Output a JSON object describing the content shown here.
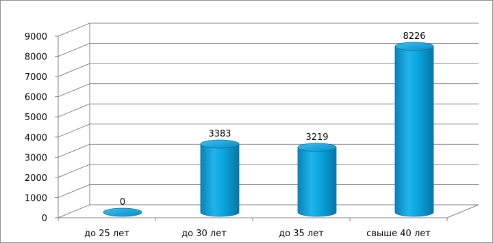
{
  "chart_data": {
    "type": "bar",
    "title": "",
    "xlabel": "",
    "ylabel": "",
    "categories": [
      "до 25 лет",
      "до 30 лет",
      "до 35 лет",
      "свыше 40 лет"
    ],
    "values": [
      0,
      3383,
      3219,
      8226
    ],
    "data_labels": [
      "0",
      "3383",
      "3219",
      "8226"
    ],
    "yticks": [
      "0",
      "1000",
      "2000",
      "3000",
      "4000",
      "5000",
      "6000",
      "7000",
      "8000",
      "9000"
    ],
    "ylim": [
      0,
      9000
    ],
    "grid": true,
    "legend": "none",
    "bar_color": "#0aa4dc",
    "bar_edge_color": "#0a6fa0",
    "gridline_color": "#808080"
  }
}
